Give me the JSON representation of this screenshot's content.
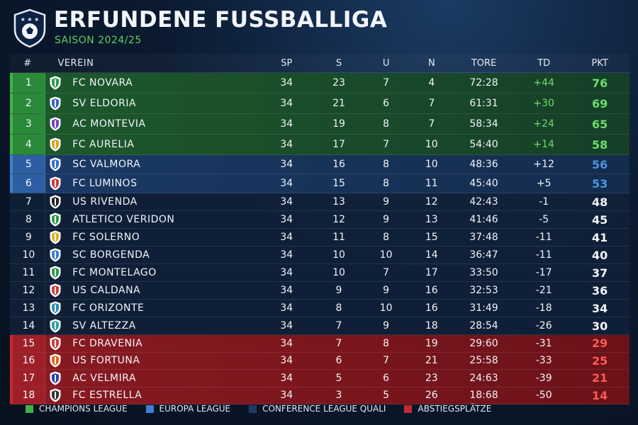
{
  "header": {
    "title": "ERFUNDENE FUSSBALLIGA",
    "subtitle": "SAISON 2024/25"
  },
  "table": {
    "columns": [
      "#",
      "VEREIN",
      "SP",
      "S",
      "U",
      "N",
      "TORE",
      "TD",
      "PKT"
    ],
    "rows": [
      {
        "pos": "1",
        "team": "FC NOVARA",
        "sp": "34",
        "s": "23",
        "u": "7",
        "n": "4",
        "tore": "72:28",
        "td": "+44",
        "pkt": "76",
        "zone": "cl",
        "crest": "#2e9b4a"
      },
      {
        "pos": "2",
        "team": "SV ELDORIA",
        "sp": "34",
        "s": "21",
        "u": "6",
        "n": "7",
        "tore": "61:31",
        "td": "+30",
        "pkt": "69",
        "zone": "cl",
        "crest": "#3a62c8"
      },
      {
        "pos": "3",
        "team": "AC MONTEVIA",
        "sp": "34",
        "s": "19",
        "u": "8",
        "n": "7",
        "tore": "58:34",
        "td": "+24",
        "pkt": "65",
        "zone": "cl",
        "crest": "#7b3fc0"
      },
      {
        "pos": "4",
        "team": "FC AURELIA",
        "sp": "34",
        "s": "17",
        "u": "7",
        "n": "10",
        "tore": "54:40",
        "td": "+14",
        "pkt": "58",
        "zone": "cl",
        "crest": "#d9a21c"
      },
      {
        "pos": "5",
        "team": "SC VALMORA",
        "sp": "34",
        "s": "16",
        "u": "8",
        "n": "10",
        "tore": "48:36",
        "td": "+12",
        "pkt": "56",
        "zone": "el",
        "crest": "#2f6fd8"
      },
      {
        "pos": "6",
        "team": "FC LUMINOS",
        "sp": "34",
        "s": "15",
        "u": "8",
        "n": "11",
        "tore": "45:40",
        "td": "+5",
        "pkt": "53",
        "zone": "el",
        "crest": "#d23a3a"
      },
      {
        "pos": "7",
        "team": "US RIVENDA",
        "sp": "34",
        "s": "13",
        "u": "9",
        "n": "12",
        "tore": "42:43",
        "td": "-1",
        "pkt": "48",
        "zone": "n",
        "crest": "#222222"
      },
      {
        "pos": "8",
        "team": "ATLETICO VERIDON",
        "sp": "34",
        "s": "12",
        "u": "9",
        "n": "13",
        "tore": "41:46",
        "td": "-5",
        "pkt": "45",
        "zone": "n",
        "crest": "#2e9b4a"
      },
      {
        "pos": "9",
        "team": "FC SOLERNO",
        "sp": "34",
        "s": "11",
        "u": "8",
        "n": "15",
        "tore": "37:48",
        "td": "-11",
        "pkt": "41",
        "zone": "n",
        "crest": "#e0b21e"
      },
      {
        "pos": "10",
        "team": "SC BORGENDA",
        "sp": "34",
        "s": "10",
        "u": "10",
        "n": "14",
        "tore": "36:47",
        "td": "-11",
        "pkt": "40",
        "zone": "n",
        "crest": "#3a7fd8"
      },
      {
        "pos": "11",
        "team": "FC MONTELAGO",
        "sp": "34",
        "s": "10",
        "u": "7",
        "n": "17",
        "tore": "33:50",
        "td": "-17",
        "pkt": "37",
        "zone": "n",
        "crest": "#2e9b4a"
      },
      {
        "pos": "12",
        "team": "US CALDANA",
        "sp": "34",
        "s": "9",
        "u": "9",
        "n": "16",
        "tore": "32:53",
        "td": "-21",
        "pkt": "36",
        "zone": "n",
        "crest": "#d23a3a"
      },
      {
        "pos": "13",
        "team": "FC ORIZONTE",
        "sp": "34",
        "s": "8",
        "u": "10",
        "n": "16",
        "tore": "31:49",
        "td": "-18",
        "pkt": "34",
        "zone": "n",
        "crest": "#2b8fb0"
      },
      {
        "pos": "14",
        "team": "SV ALTEZZA",
        "sp": "34",
        "s": "7",
        "u": "9",
        "n": "18",
        "tore": "28:54",
        "td": "-26",
        "pkt": "30",
        "zone": "n",
        "crest": "#2aa3a0"
      },
      {
        "pos": "15",
        "team": "FC DRAVENIA",
        "sp": "34",
        "s": "7",
        "u": "8",
        "n": "19",
        "tore": "29:60",
        "td": "-31",
        "pkt": "29",
        "zone": "rel",
        "crest": "#d23a3a"
      },
      {
        "pos": "16",
        "team": "US FORTUNA",
        "sp": "34",
        "s": "6",
        "u": "7",
        "n": "21",
        "tore": "25:58",
        "td": "-33",
        "pkt": "25",
        "zone": "rel",
        "crest": "#e0661e"
      },
      {
        "pos": "17",
        "team": "AC VELMIRA",
        "sp": "34",
        "s": "5",
        "u": "6",
        "n": "23",
        "tore": "24:63",
        "td": "-39",
        "pkt": "21",
        "zone": "rel",
        "crest": "#2b3fa8"
      },
      {
        "pos": "18",
        "team": "FC ESTRELLA",
        "sp": "34",
        "s": "3",
        "u": "5",
        "n": "26",
        "tore": "18:68",
        "td": "-50",
        "pkt": "14",
        "zone": "rel",
        "crest": "#333333"
      }
    ]
  },
  "legend": [
    {
      "label": "CHAMPIONS LEAGUE",
      "color": "#3fb24a"
    },
    {
      "label": "EUROPA LEAGUE",
      "color": "#3d7fd0"
    },
    {
      "label": "CONFERENCE LEAGUE QUALI",
      "color": "#1e3a66"
    },
    {
      "label": "ABSTIEGSPLÄTZE",
      "color": "#c52a33"
    }
  ],
  "icons": {
    "logo": "shield-soccer-ball-icon",
    "crest": "club-crest-icon"
  }
}
